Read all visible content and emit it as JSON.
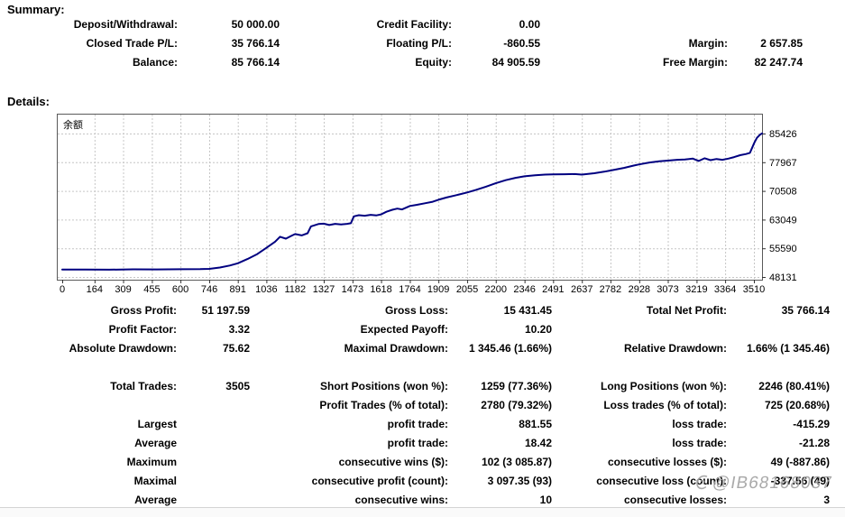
{
  "summary": {
    "heading": "Summary:",
    "rows": [
      [
        "Deposit/Withdrawal:",
        "50 000.00",
        "Credit Facility:",
        "0.00",
        "",
        ""
      ],
      [
        "Closed Trade P/L:",
        "35 766.14",
        "Floating P/L:",
        "-860.55",
        "Margin:",
        "2 657.85"
      ],
      [
        "Balance:",
        "85 766.14",
        "Equity:",
        "84 905.59",
        "Free Margin:",
        "82 247.74"
      ]
    ]
  },
  "details": {
    "heading": "Details:"
  },
  "chart_data": {
    "type": "line",
    "title": "余额",
    "xlabel": "",
    "ylabel": "",
    "grid": "dashed",
    "legend_position": "none",
    "y_axis_side": "right",
    "x_ticks": [
      0,
      164,
      309,
      455,
      600,
      746,
      891,
      1036,
      1182,
      1327,
      1473,
      1618,
      1764,
      1909,
      2055,
      2200,
      2346,
      2491,
      2637,
      2782,
      2928,
      3073,
      3219,
      3364,
      3510
    ],
    "y_ticks": [
      48131,
      55590,
      63049,
      70508,
      77967,
      85426
    ],
    "xlim": [
      0,
      3551
    ],
    "ylim": [
      48131,
      85426
    ],
    "line_color": "#000080",
    "series": [
      {
        "name": "Balance",
        "points": [
          [
            0,
            50050
          ],
          [
            120,
            50080
          ],
          [
            240,
            50030
          ],
          [
            360,
            50120
          ],
          [
            480,
            50100
          ],
          [
            600,
            50150
          ],
          [
            700,
            50160
          ],
          [
            746,
            50250
          ],
          [
            800,
            50600
          ],
          [
            850,
            51100
          ],
          [
            891,
            51700
          ],
          [
            940,
            52800
          ],
          [
            990,
            54100
          ],
          [
            1036,
            55700
          ],
          [
            1080,
            57300
          ],
          [
            1105,
            58600
          ],
          [
            1135,
            58100
          ],
          [
            1165,
            58900
          ],
          [
            1182,
            59300
          ],
          [
            1215,
            58950
          ],
          [
            1245,
            59500
          ],
          [
            1262,
            61300
          ],
          [
            1300,
            61900
          ],
          [
            1327,
            62000
          ],
          [
            1355,
            61650
          ],
          [
            1385,
            61950
          ],
          [
            1415,
            61800
          ],
          [
            1445,
            61950
          ],
          [
            1465,
            62100
          ],
          [
            1480,
            63900
          ],
          [
            1505,
            64200
          ],
          [
            1535,
            64050
          ],
          [
            1565,
            64300
          ],
          [
            1595,
            64150
          ],
          [
            1618,
            64400
          ],
          [
            1645,
            65100
          ],
          [
            1675,
            65600
          ],
          [
            1700,
            65900
          ],
          [
            1725,
            65700
          ],
          [
            1764,
            66600
          ],
          [
            1800,
            66900
          ],
          [
            1840,
            67300
          ],
          [
            1880,
            67700
          ],
          [
            1909,
            68200
          ],
          [
            1950,
            68800
          ],
          [
            2000,
            69400
          ],
          [
            2055,
            70100
          ],
          [
            2100,
            70800
          ],
          [
            2150,
            71600
          ],
          [
            2200,
            72500
          ],
          [
            2250,
            73300
          ],
          [
            2300,
            73900
          ],
          [
            2346,
            74300
          ],
          [
            2400,
            74600
          ],
          [
            2450,
            74750
          ],
          [
            2491,
            74800
          ],
          [
            2550,
            74850
          ],
          [
            2600,
            74900
          ],
          [
            2637,
            74750
          ],
          [
            2700,
            75100
          ],
          [
            2750,
            75500
          ],
          [
            2782,
            75800
          ],
          [
            2850,
            76500
          ],
          [
            2900,
            77100
          ],
          [
            2928,
            77400
          ],
          [
            2980,
            77900
          ],
          [
            3030,
            78200
          ],
          [
            3073,
            78400
          ],
          [
            3120,
            78600
          ],
          [
            3160,
            78700
          ],
          [
            3200,
            78900
          ],
          [
            3230,
            78300
          ],
          [
            3260,
            79000
          ],
          [
            3290,
            78500
          ],
          [
            3320,
            78800
          ],
          [
            3350,
            78600
          ],
          [
            3380,
            78900
          ],
          [
            3410,
            79300
          ],
          [
            3440,
            79800
          ],
          [
            3470,
            80100
          ],
          [
            3490,
            80400
          ],
          [
            3500,
            81600
          ],
          [
            3512,
            83000
          ],
          [
            3525,
            84300
          ],
          [
            3540,
            85100
          ],
          [
            3551,
            85450
          ]
        ]
      }
    ]
  },
  "stats": {
    "rows": [
      [
        "Gross Profit:",
        "51 197.59",
        "Gross Loss:",
        "15 431.45",
        "Total Net Profit:",
        "35 766.14"
      ],
      [
        "Profit Factor:",
        "3.32",
        "Expected Payoff:",
        "10.20",
        "",
        ""
      ],
      [
        "Absolute Drawdown:",
        "75.62",
        "Maximal Drawdown:",
        "1 345.46 (1.66%)",
        "Relative Drawdown:",
        "1.66% (1 345.46)"
      ],
      [
        "Total Trades:",
        "3505",
        "Short Positions (won %):",
        "1259 (77.36%)",
        "Long Positions (won %):",
        "2246 (80.41%)"
      ],
      [
        "",
        "",
        "Profit Trades (% of total):",
        "2780 (79.32%)",
        "Loss trades (% of total):",
        "725 (20.68%)"
      ],
      [
        "Largest",
        "",
        "profit trade:",
        "881.55",
        "loss trade:",
        "-415.29"
      ],
      [
        "Average",
        "",
        "profit trade:",
        "18.42",
        "loss trade:",
        "-21.28"
      ],
      [
        "Maximum",
        "",
        "consecutive wins ($):",
        "102 (3 085.87)",
        "consecutive losses ($):",
        "49 (-887.86)"
      ],
      [
        "Maximal",
        "",
        "consecutive profit (count):",
        "3 097.35 (93)",
        "consecutive loss (count):",
        "-337.56 (49)"
      ],
      [
        "Average",
        "",
        "consecutive wins:",
        "10",
        "consecutive losses:",
        "3"
      ]
    ],
    "spacer_after_row_index": 2
  },
  "watermark": {
    "text": "@IB68168037"
  }
}
